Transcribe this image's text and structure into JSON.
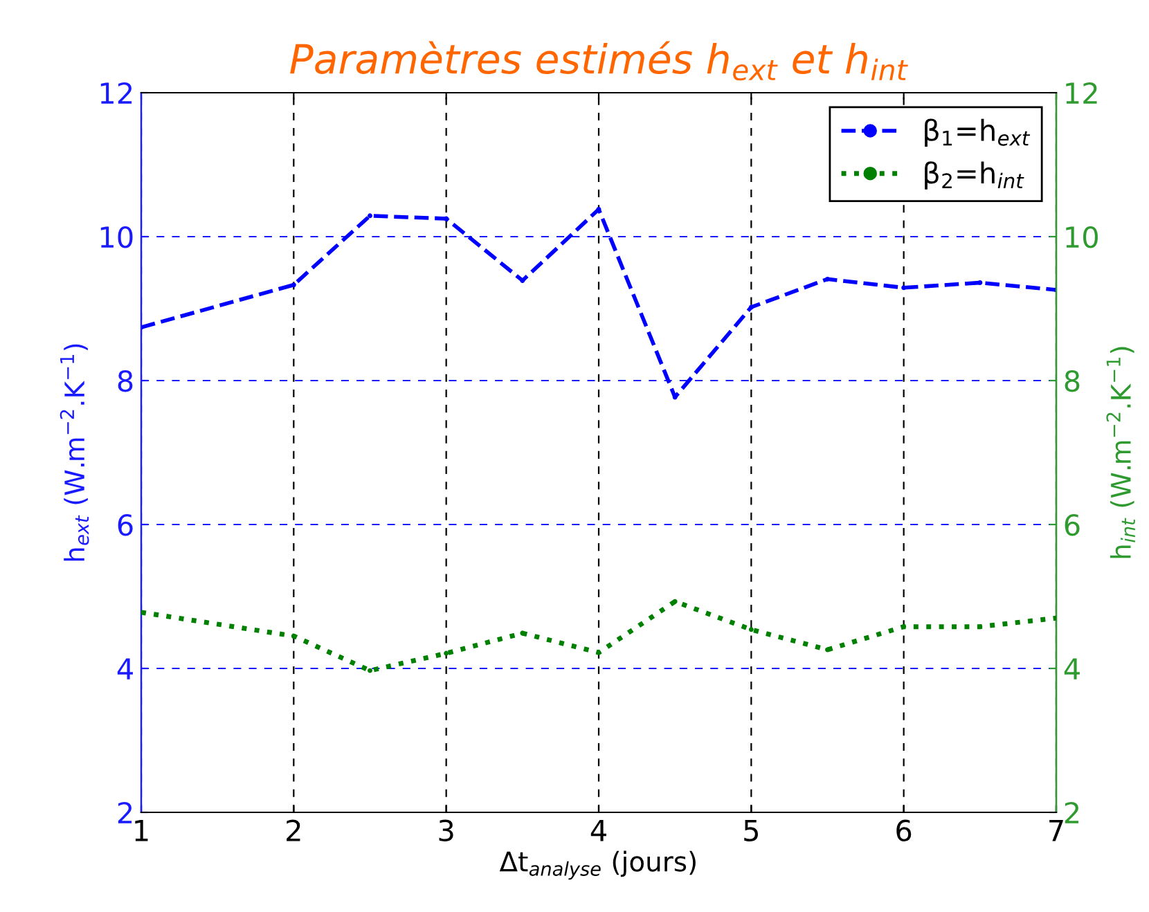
{
  "chart_data": {
    "type": "line",
    "title": "Paramètres estimés h$_{ext}$ et h$_{int}$",
    "xlabel": "Δt$_{analyse}$ (jours)",
    "ylabel": "h$_{ext}$ (W.m$^{−2}$.K$^{−1}$)",
    "y2label": "h$_{int}$ (W.m$^{−2}$.K$^{−1}$)",
    "series": [
      {
        "name": "β$_{1}$=h$_{ext}$",
        "color": "#0000ff",
        "line_style": "dashed",
        "x": [
          1,
          2,
          2.5,
          3,
          3.5,
          4,
          4.5,
          5,
          5.5,
          6,
          6.5,
          7
        ],
        "values": [
          8.74,
          9.33,
          10.29,
          10.25,
          9.39,
          10.38,
          7.77,
          9.02,
          9.41,
          9.29,
          9.36,
          9.26
        ]
      },
      {
        "name": "β$_{2}$=h$_{int}$",
        "color": "#008000",
        "line_style": "dotted",
        "axis": "y2",
        "x": [
          1,
          2,
          2.5,
          3,
          3.5,
          4,
          4.5,
          5,
          5.5,
          6,
          6.5,
          7
        ],
        "values": [
          4.78,
          4.45,
          3.97,
          4.21,
          4.49,
          4.22,
          4.93,
          4.54,
          4.26,
          4.58,
          4.58,
          4.7
        ]
      }
    ],
    "xlim": [
      1,
      7
    ],
    "xticks": [
      1,
      2,
      3,
      4,
      5,
      6,
      7
    ],
    "ylim": [
      2,
      12
    ],
    "yticks": [
      2,
      4,
      6,
      8,
      10,
      12
    ],
    "y2lim": [
      2,
      12
    ],
    "y2ticks": [
      2,
      4,
      6,
      8,
      10,
      12
    ],
    "grid": true,
    "legend": "top right",
    "marker": "circle"
  }
}
